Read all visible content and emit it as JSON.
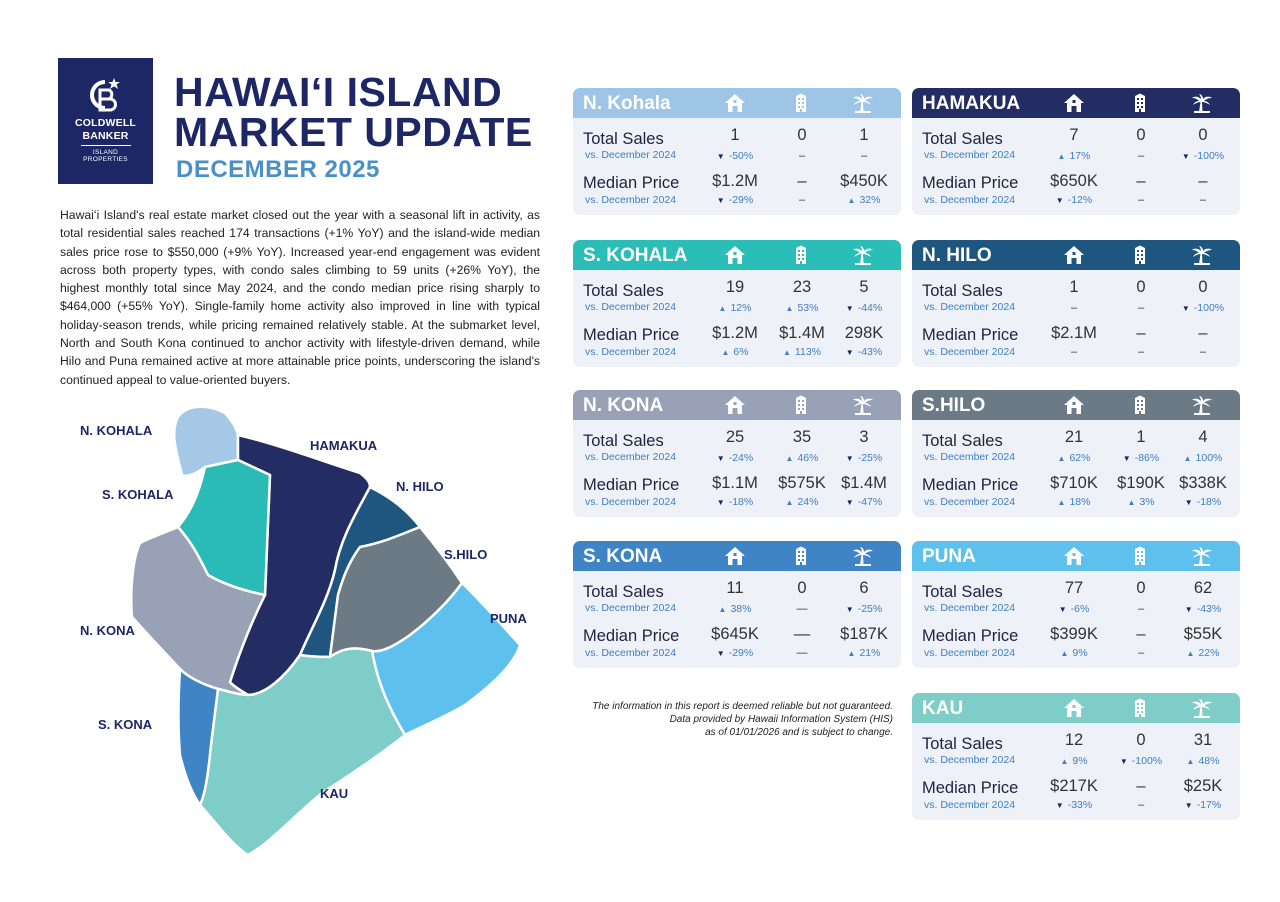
{
  "brand": {
    "line1": "COLDWELL",
    "line2": "BANKER",
    "line3": "ISLAND",
    "line4": "PROPERTIES"
  },
  "header": {
    "title_line1": "HAWAIʻI ISLAND",
    "title_line2": "MARKET UPDATE",
    "subtitle": "DECEMBER 2025"
  },
  "intro": "Hawaiʻi Island's real estate market closed out the year with a seasonal lift in activity, as total residential sales reached 174 transactions (+1% YoY) and the island-wide median sales price rose to $550,000 (+9% YoY). Increased year-end engagement was evident across both property types, with condo sales climbing to 59 units (+26% YoY), the highest monthly total since May 2024, and the condo median price rising sharply to $464,000 (+55% YoY). Single-family home activity also improved in line with typical holiday-season trends, while pricing remained relatively stable. At the submarket level, North and South Kona continued to anchor activity with lifestyle-driven demand, while Hilo and Puna remained active at more attainable price points, underscoring the island's continued appeal to value-oriented buyers.",
  "labels": {
    "total_sales": "Total Sales",
    "median_price": "Median Price",
    "vs": "vs. December 2024"
  },
  "icons": {
    "home": "house-icon",
    "condo": "building-icon",
    "land": "palm-tree-icon"
  },
  "map": {
    "labels": [
      "N. KOHALA",
      "HAMAKUA",
      "S. KOHALA",
      "N. HILO",
      "S.HILO",
      "N. KONA",
      "PUNA",
      "S. KONA",
      "KAU"
    ]
  },
  "cards": [
    {
      "name": "N. Kohala",
      "color": "#9fc5e6",
      "sales": [
        {
          "v": "1",
          "c": "-50%",
          "d": "down"
        },
        {
          "v": "0",
          "c": "–",
          "d": ""
        },
        {
          "v": "1",
          "c": "–",
          "d": ""
        }
      ],
      "price": [
        {
          "v": "$1.2M",
          "c": "-29%",
          "d": "down"
        },
        {
          "v": "–",
          "c": "–",
          "d": ""
        },
        {
          "v": "$450K",
          "c": "32%",
          "d": "up"
        }
      ]
    },
    {
      "name": "HAMAKUA",
      "color": "#232c63",
      "sales": [
        {
          "v": "7",
          "c": "17%",
          "d": "up"
        },
        {
          "v": "0",
          "c": "–",
          "d": ""
        },
        {
          "v": "0",
          "c": "-100%",
          "d": "down"
        }
      ],
      "price": [
        {
          "v": "$650K",
          "c": "-12%",
          "d": "down"
        },
        {
          "v": "–",
          "c": "–",
          "d": ""
        },
        {
          "v": "–",
          "c": "–",
          "d": ""
        }
      ]
    },
    {
      "name": "S. KOHALA",
      "color": "#2bbdb8",
      "sales": [
        {
          "v": "19",
          "c": "12%",
          "d": "up"
        },
        {
          "v": "23",
          "c": "53%",
          "d": "up"
        },
        {
          "v": "5",
          "c": "-44%",
          "d": "down"
        }
      ],
      "price": [
        {
          "v": "$1.2M",
          "c": "6%",
          "d": "up"
        },
        {
          "v": "$1.4M",
          "c": "113%",
          "d": "up"
        },
        {
          "v": "298K",
          "c": "-43%",
          "d": "down"
        }
      ]
    },
    {
      "name": "N. HILO",
      "color": "#1f5680",
      "sales": [
        {
          "v": "1",
          "c": "–",
          "d": ""
        },
        {
          "v": "0",
          "c": "–",
          "d": ""
        },
        {
          "v": "0",
          "c": "-100%",
          "d": "down"
        }
      ],
      "price": [
        {
          "v": "$2.1M",
          "c": "–",
          "d": ""
        },
        {
          "v": "–",
          "c": "–",
          "d": ""
        },
        {
          "v": "–",
          "c": "–",
          "d": ""
        }
      ]
    },
    {
      "name": "N. KONA",
      "color": "#98a1b5",
      "sales": [
        {
          "v": "25",
          "c": "-24%",
          "d": "down"
        },
        {
          "v": "35",
          "c": "46%",
          "d": "up"
        },
        {
          "v": "3",
          "c": "-25%",
          "d": "down"
        }
      ],
      "price": [
        {
          "v": "$1.1M",
          "c": "-18%",
          "d": "down"
        },
        {
          "v": "$575K",
          "c": "24%",
          "d": "up"
        },
        {
          "v": "$1.4M",
          "c": "-47%",
          "d": "down"
        }
      ]
    },
    {
      "name": "S.HILO",
      "color": "#6b7a84",
      "sales": [
        {
          "v": "21",
          "c": "62%",
          "d": "up"
        },
        {
          "v": "1",
          "c": "-86%",
          "d": "down"
        },
        {
          "v": "4",
          "c": "100%",
          "d": "up"
        }
      ],
      "price": [
        {
          "v": "$710K",
          "c": "18%",
          "d": "up"
        },
        {
          "v": "$190K",
          "c": "3%",
          "d": "up"
        },
        {
          "v": "$338K",
          "c": "-18%",
          "d": "down"
        }
      ]
    },
    {
      "name": "S. KONA",
      "color": "#3f85c5",
      "sales": [
        {
          "v": "11",
          "c": "38%",
          "d": "up"
        },
        {
          "v": "0",
          "c": "—",
          "d": ""
        },
        {
          "v": "6",
          "c": "-25%",
          "d": "down"
        }
      ],
      "price": [
        {
          "v": "$645K",
          "c": "-29%",
          "d": "down"
        },
        {
          "v": "—",
          "c": "—",
          "d": ""
        },
        {
          "v": "$187K",
          "c": "21%",
          "d": "up"
        }
      ]
    },
    {
      "name": "PUNA",
      "color": "#5ec0ec",
      "sales": [
        {
          "v": "77",
          "c": "-6%",
          "d": "down"
        },
        {
          "v": "0",
          "c": "–",
          "d": ""
        },
        {
          "v": "62",
          "c": "-43%",
          "d": "down"
        }
      ],
      "price": [
        {
          "v": "$399K",
          "c": "9%",
          "d": "up"
        },
        {
          "v": "–",
          "c": "–",
          "d": ""
        },
        {
          "v": "$55K",
          "c": "22%",
          "d": "up"
        }
      ]
    },
    {
      "name": "KAU",
      "color": "#7fcdc8",
      "sales": [
        {
          "v": "12",
          "c": "9%",
          "d": "up"
        },
        {
          "v": "0",
          "c": "-100%",
          "d": "down"
        },
        {
          "v": "31",
          "c": "48%",
          "d": "up"
        }
      ],
      "price": [
        {
          "v": "$217K",
          "c": "-33%",
          "d": "down"
        },
        {
          "v": "–",
          "c": "–",
          "d": ""
        },
        {
          "v": "$25K",
          "c": "-17%",
          "d": "down"
        }
      ]
    }
  ],
  "disclaimer": {
    "line1": "The information in this report is deemed reliable but not guaranteed.",
    "line2": "Data provided by Hawaii Information System (HIS)",
    "line3": "as of 01/01/2026 and is subject to change."
  }
}
